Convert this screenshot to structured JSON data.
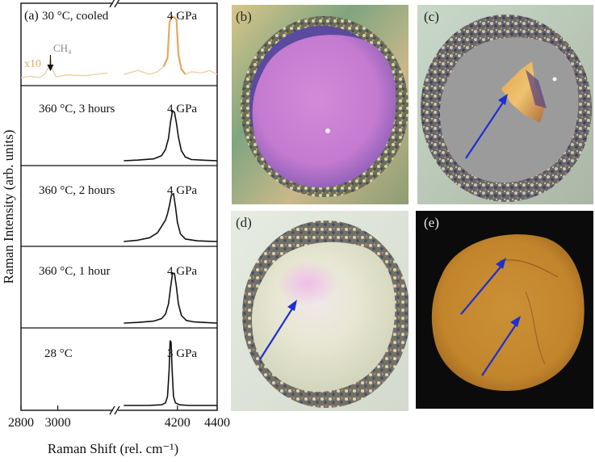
{
  "panel_a_label": "(a)",
  "chart_data": {
    "type": "line",
    "title": "",
    "xlabel": "Raman Shift (rel. cm⁻¹)",
    "ylabel": "Raman Intensity (arb. units)",
    "xlim": [
      2800,
      4400
    ],
    "x_axis_break": [
      3300,
      3900
    ],
    "xticks": [
      "2800",
      "3000",
      "4200",
      "4400"
    ],
    "grid": false,
    "legend": "none",
    "annotations": [
      {
        "text": "CH₄",
        "x": 2960
      },
      {
        "text": "x10",
        "applies_to": "30 °C, cooled"
      }
    ],
    "series": [
      {
        "name": "30 °C, cooled",
        "pressure": "4 GPa",
        "color": "#e3a860",
        "scaled_color": "#f0cda1",
        "x": [
          2800,
          2850,
          2900,
          2930,
          2950,
          2960,
          2970,
          2990,
          3050,
          3150,
          3270,
          3930,
          4000,
          4060,
          4100,
          4130,
          4150,
          4160,
          4170,
          4185,
          4195,
          4205,
          4220,
          4240,
          4270,
          4320,
          4360,
          4400
        ],
        "y": [
          0.05,
          0.07,
          0.05,
          0.1,
          0.22,
          0.35,
          0.18,
          0.06,
          0.09,
          0.08,
          0.12,
          0.1,
          0.16,
          0.1,
          0.14,
          0.22,
          0.35,
          0.9,
          1.0,
          0.98,
          0.95,
          0.4,
          0.18,
          0.1,
          0.14,
          0.12,
          0.16,
          0.1
        ]
      },
      {
        "name": "360 °C, 3 hours",
        "pressure": "4 GPa",
        "color": "#111111",
        "x": [
          3930,
          4000,
          4080,
          4120,
          4140,
          4155,
          4165,
          4175,
          4185,
          4195,
          4205,
          4220,
          4240,
          4270,
          4320,
          4400
        ],
        "y": [
          0.0,
          0.01,
          0.03,
          0.08,
          0.18,
          0.36,
          0.62,
          0.8,
          0.78,
          0.6,
          0.38,
          0.16,
          0.06,
          0.02,
          0.01,
          0.0
        ]
      },
      {
        "name": "360 °C, 2 hours",
        "pressure": "4 GPa",
        "color": "#111111",
        "x": [
          3930,
          4000,
          4060,
          4100,
          4120,
          4140,
          4150,
          4160,
          4170,
          4180,
          4190,
          4200,
          4215,
          4240,
          4300,
          4400
        ],
        "y": [
          0.0,
          0.02,
          0.06,
          0.14,
          0.24,
          0.34,
          0.44,
          0.58,
          0.74,
          0.76,
          0.56,
          0.3,
          0.12,
          0.04,
          0.01,
          0.0
        ]
      },
      {
        "name": "360 °C, 1 hour",
        "pressure": "4 GPa",
        "color": "#111111",
        "x": [
          3930,
          4000,
          4080,
          4120,
          4140,
          4155,
          4165,
          4175,
          4185,
          4195,
          4205,
          4220,
          4245,
          4280,
          4330,
          4400
        ],
        "y": [
          0.0,
          0.01,
          0.03,
          0.07,
          0.14,
          0.3,
          0.55,
          0.78,
          0.78,
          0.56,
          0.3,
          0.12,
          0.04,
          0.02,
          0.01,
          0.0
        ]
      },
      {
        "name": "28 °C",
        "pressure": "3 GPa",
        "color": "#111111",
        "x": [
          3930,
          4050,
          4120,
          4140,
          4150,
          4158,
          4163,
          4168,
          4173,
          4180,
          4190,
          4210,
          4260,
          4400
        ],
        "y": [
          0.0,
          0.0,
          0.01,
          0.04,
          0.14,
          0.55,
          1.0,
          0.98,
          0.55,
          0.14,
          0.04,
          0.01,
          0.0,
          0.0
        ]
      }
    ]
  },
  "panels": [
    {
      "id": "b",
      "label": "(b)"
    },
    {
      "id": "c",
      "label": "(c)"
    },
    {
      "id": "d",
      "label": "(d)"
    },
    {
      "id": "e",
      "label": "(e)"
    }
  ],
  "colors": {
    "arrow": "#1e2fcf",
    "panel_b_center": "#c97bd3",
    "panel_c_center": "#9a9a9a",
    "panel_d_center": "#e8e8d6",
    "panel_e_sample": "#c6892f"
  }
}
